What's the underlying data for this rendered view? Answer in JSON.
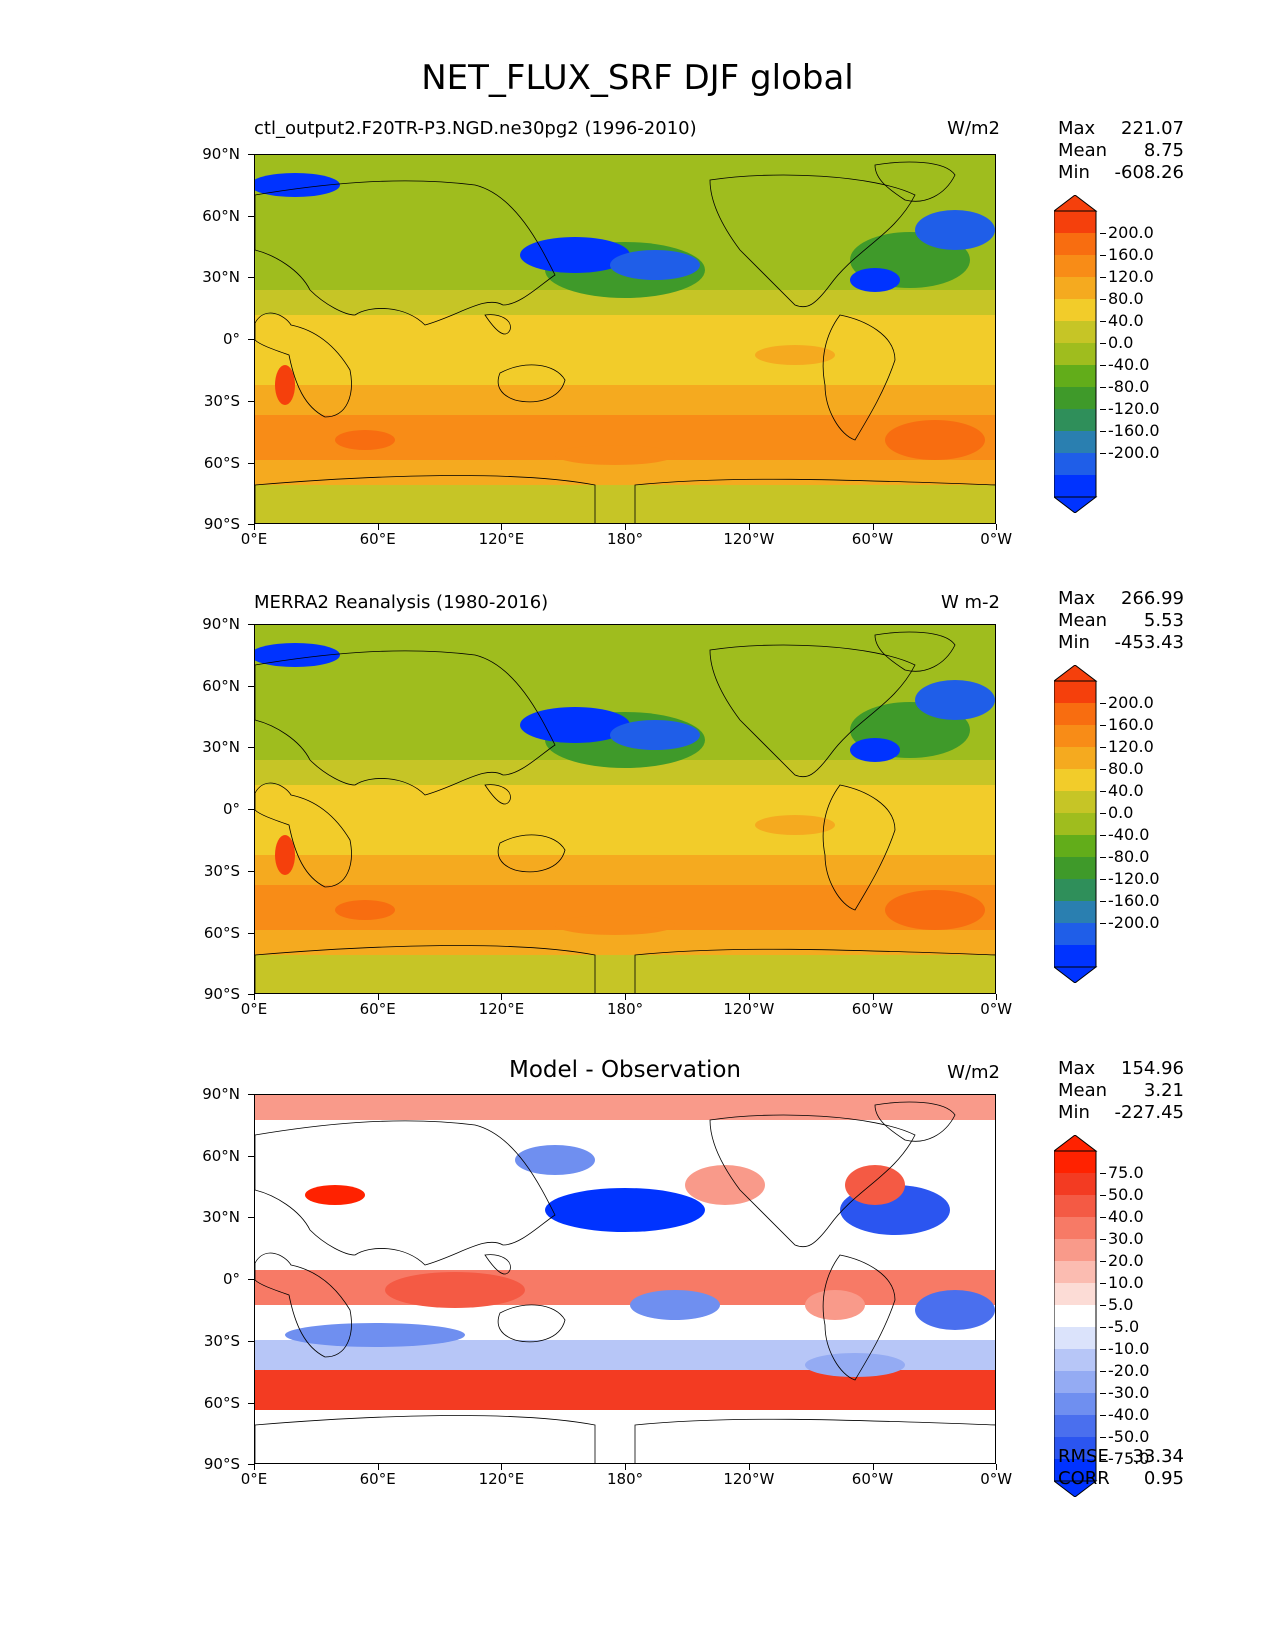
{
  "title": "NET_FLUX_SRF DJF global",
  "panels": [
    {
      "subtitle": "ctl_output2.F20TR-P3.NGD.ne30pg2 (1996-2010)",
      "units": "W/m2",
      "stats": {
        "max_label": "Max",
        "max": "221.07",
        "mean_label": "Mean",
        "mean": "8.75",
        "min_label": "Min",
        "min": "-608.26"
      },
      "colorbar_labels": [
        "200.0",
        "160.0",
        "120.0",
        "80.0",
        "40.0",
        "0.0",
        "-40.0",
        "-80.0",
        "-120.0",
        "-160.0",
        "-200.0"
      ]
    },
    {
      "subtitle": "MERRA2 Reanalysis (1980-2016)",
      "units": "W m-2",
      "stats": {
        "max_label": "Max",
        "max": "266.99",
        "mean_label": "Mean",
        "mean": "5.53",
        "min_label": "Min",
        "min": "-453.43"
      },
      "colorbar_labels": [
        "200.0",
        "160.0",
        "120.0",
        "80.0",
        "40.0",
        "0.0",
        "-40.0",
        "-80.0",
        "-120.0",
        "-160.0",
        "-200.0"
      ]
    },
    {
      "center_title": "Model - Observation",
      "units": "W/m2",
      "stats": {
        "max_label": "Max",
        "max": "154.96",
        "mean_label": "Mean",
        "mean": "3.21",
        "min_label": "Min",
        "min": "-227.45"
      },
      "colorbar_labels": [
        "75.0",
        "50.0",
        "40.0",
        "30.0",
        "20.0",
        "10.0",
        "5.0",
        "-5.0",
        "-10.0",
        "-20.0",
        "-30.0",
        "-40.0",
        "-50.0",
        "-75.0"
      ],
      "rmse_label": "RMSE",
      "rmse": "33.34",
      "corr_label": "CORR",
      "corr": "0.95"
    }
  ],
  "lat_ticks": [
    "90°N",
    "60°N",
    "30°N",
    "0°",
    "30°S",
    "60°S",
    "90°S"
  ],
  "lon_ticks": [
    "0°E",
    "60°E",
    "120°E",
    "180°",
    "120°W",
    "60°W",
    "0°W"
  ],
  "colors": {
    "flux_scale": [
      "#0033ff",
      "#1f5ee8",
      "#2a7fb0",
      "#2f8f5a",
      "#3f9a2a",
      "#62ad1a",
      "#9fbd1e",
      "#c6c526",
      "#f2cc2a",
      "#f5aa1f",
      "#f88c17",
      "#f86d10",
      "#f5400c",
      "#ff2a00"
    ],
    "diff_scale": [
      "#0033ff",
      "#2b55f0",
      "#4a6fee",
      "#6f8ff0",
      "#94abf3",
      "#b7c6f7",
      "#dbe3fb",
      "#ffffff",
      "#fcdcd6",
      "#fbbcb1",
      "#f99a8a",
      "#f77a66",
      "#f45a44",
      "#f33b22",
      "#ff2200"
    ]
  }
}
